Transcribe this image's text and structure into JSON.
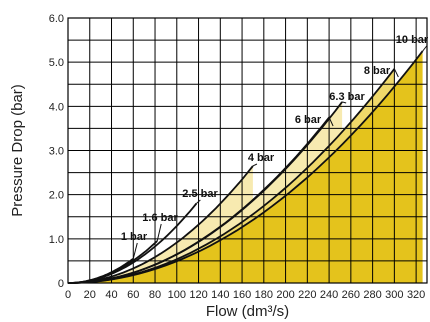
{
  "chart_data": {
    "type": "line",
    "title": "",
    "xlabel": "Flow (dm³/s)",
    "ylabel": "Pressure Drop (bar)",
    "xlim": [
      0,
      330
    ],
    "ylim": [
      0,
      6.0
    ],
    "xticks": [
      "0",
      "20",
      "40",
      "60",
      "80",
      "100",
      "120",
      "140",
      "160",
      "180",
      "200",
      "220",
      "240",
      "260",
      "280",
      "300",
      "320"
    ],
    "yticks": [
      "0",
      "1.0",
      "2.0",
      "3.0",
      "4.0",
      "5.0",
      "6.0"
    ],
    "grid": true,
    "fill_colors": [
      "#e4c31c",
      "#f0d96a",
      "#f7eab0"
    ],
    "series": [
      {
        "name": "1 bar",
        "x_end": 60,
        "y_end": 0.55
      },
      {
        "name": "1.6 bar",
        "x_end": 82,
        "y_end": 0.95
      },
      {
        "name": "2.5 bar",
        "x_end": 118,
        "y_end": 1.8
      },
      {
        "name": "4 bar",
        "x_end": 170,
        "y_end": 2.65
      },
      {
        "name": "6 bar",
        "x_end": 240,
        "y_end": 3.75
      },
      {
        "name": "6.3 bar",
        "x_end": 252,
        "y_end": 4.1
      },
      {
        "name": "8 bar",
        "x_end": 300,
        "y_end": 4.85
      },
      {
        "name": "10 bar",
        "x_end": 326,
        "y_end": 5.25
      }
    ]
  }
}
